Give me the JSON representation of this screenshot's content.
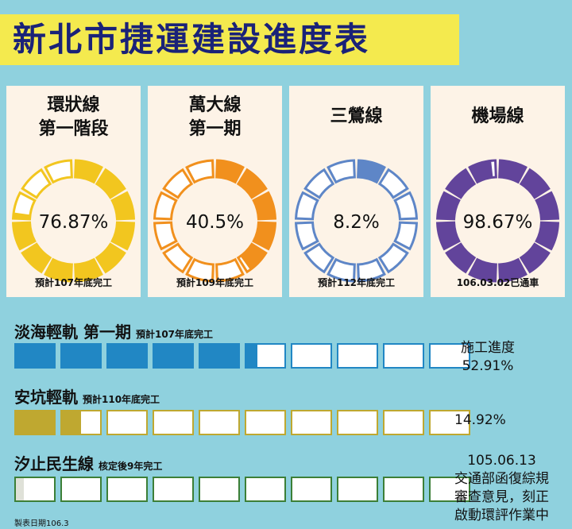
{
  "title": "新北市捷運建設進度表",
  "metros": [
    {
      "name_line1": "環狀線",
      "name_line2": "第一階段",
      "percent_label": "76.87%",
      "progress": 0.7687,
      "note": "預計107年底完工",
      "color": "#f2c61f"
    },
    {
      "name_line1": "萬大線",
      "name_line2": "第一期",
      "percent_label": "40.5%",
      "progress": 0.405,
      "note": "預計109年底完工",
      "color": "#f1901d"
    },
    {
      "name_line1": "三鶯線",
      "name_line2": "",
      "percent_label": "8.2%",
      "progress": 0.082,
      "note": "預計112年底完工",
      "color": "#5e86c7"
    },
    {
      "name_line1": "機場線",
      "name_line2": "",
      "percent_label": "98.67%",
      "progress": 0.9867,
      "note": "106.03.02已通車",
      "color": "#62449b"
    }
  ],
  "light_rail": [
    {
      "name": "淡海輕軌 第一期",
      "note": "預計107年底完工",
      "progress": 0.5291,
      "fill_color": "#2187c4",
      "border_color": "#2187c4",
      "side_label": "施工進度",
      "side_value": "52.91%"
    },
    {
      "name": "安坑輕軌",
      "note": "預計110年底完工",
      "progress": 0.1492,
      "fill_color": "#bfa830",
      "border_color": "#bfa830",
      "side_value": "14.92%"
    },
    {
      "name": "汐止民生線",
      "note": "核定後9年完工",
      "progress": 0.02,
      "fill_color": "#dfe1d8",
      "border_color": "#3c7f37",
      "side_lines": [
        "105.06.13",
        "交通部函復綜規",
        "審查意見，刻正",
        "啟動環評作業中"
      ]
    }
  ],
  "footer": "製表日期106.3"
}
